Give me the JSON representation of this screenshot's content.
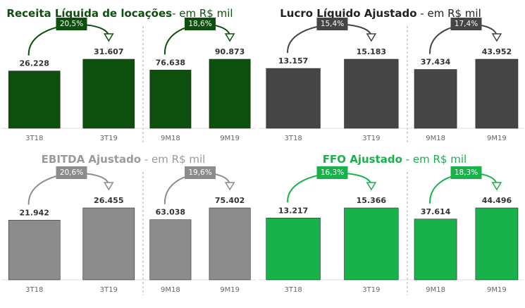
{
  "chart_data": [
    {
      "type": "bar",
      "title": "Receita Líquida de locações",
      "subtitle": "- em R$ mil",
      "color": "#0d4f0d",
      "title_color": "#0d4f0d",
      "groups": [
        {
          "categories": [
            "3T18",
            "3T19"
          ],
          "values": [
            26228,
            31607
          ],
          "value_labels": [
            "26.228",
            "31.607"
          ],
          "change": "20,5%"
        },
        {
          "categories": [
            "9M18",
            "9M19"
          ],
          "values": [
            76638,
            90873
          ],
          "value_labels": [
            "76.638",
            "90.873"
          ],
          "change": "18,6%"
        }
      ]
    },
    {
      "type": "bar",
      "title": "Lucro Líquido Ajustado",
      "subtitle": " - em R$ mil",
      "color": "#454545",
      "title_color": "#222222",
      "groups": [
        {
          "categories": [
            "3T18",
            "3T19"
          ],
          "values": [
            13157,
            15183
          ],
          "value_labels": [
            "13.157",
            "15.183"
          ],
          "change": "15,4%"
        },
        {
          "categories": [
            "9M18",
            "9M19"
          ],
          "values": [
            37434,
            43952
          ],
          "value_labels": [
            "37.434",
            "43.952"
          ],
          "change": "17,4%"
        }
      ]
    },
    {
      "type": "bar",
      "title": "EBITDA Ajustado",
      "subtitle": " - em R$ mil",
      "color": "#8c8c8c",
      "title_color": "#9a9a9a",
      "groups": [
        {
          "categories": [
            "3T18",
            "3T19"
          ],
          "values": [
            21942,
            26455
          ],
          "value_labels": [
            "21.942",
            "26.455"
          ],
          "change": "20,6%"
        },
        {
          "categories": [
            "9M18",
            "9M19"
          ],
          "values": [
            63038,
            75402
          ],
          "value_labels": [
            "63.038",
            "75.402"
          ],
          "change": "19,6%"
        }
      ]
    },
    {
      "type": "bar",
      "title": "FFO Ajustado",
      "subtitle": " - em R$ mil",
      "color": "#17b24a",
      "title_color": "#17b24a",
      "groups": [
        {
          "categories": [
            "3T18",
            "3T19"
          ],
          "values": [
            13217,
            15366
          ],
          "value_labels": [
            "13.217",
            "15.366"
          ],
          "change": "16,3%"
        },
        {
          "categories": [
            "9M18",
            "9M19"
          ],
          "values": [
            37614,
            44496
          ],
          "value_labels": [
            "37.614",
            "44.496"
          ],
          "change": "18,3%"
        }
      ]
    }
  ]
}
